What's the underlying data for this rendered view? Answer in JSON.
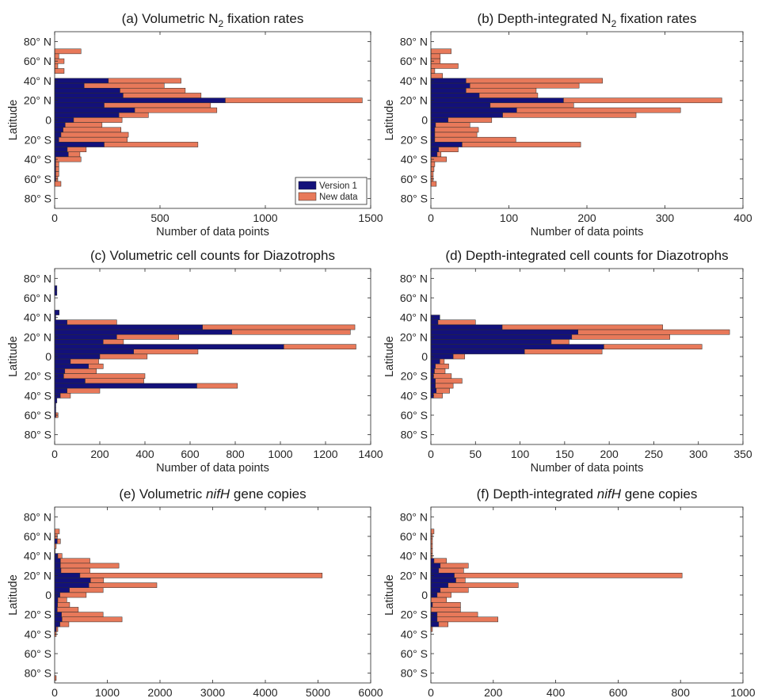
{
  "colors": {
    "version1": "#13117a",
    "new_data": "#e8795a"
  },
  "legend": {
    "version1": "Version 1",
    "new_data": "New data"
  },
  "chart_data": [
    {
      "id": "a",
      "type": "bar",
      "orientation": "horizontal",
      "stacked": true,
      "title": {
        "prefix": "(a) Volumetric N",
        "sub": "2",
        "suffix": " fixation rates"
      },
      "xlabel": "Number of data points",
      "ylabel": "Latitude",
      "xlim": [
        0,
        1500
      ],
      "xticks": [
        "0",
        "500",
        "1000",
        "1500"
      ],
      "ylim": [
        -90,
        90
      ],
      "yticks": [
        "80° N",
        "60° N",
        "40° N",
        "20° N",
        "0",
        "20° S",
        "40° S",
        "60° S",
        "80° S"
      ],
      "bin_width_deg": 5,
      "legend_position": "bottom-right",
      "latitude_bins": [
        85,
        80,
        75,
        70,
        65,
        60,
        55,
        50,
        45,
        40,
        35,
        30,
        25,
        20,
        15,
        10,
        5,
        0,
        -5,
        -10,
        -15,
        -20,
        -25,
        -30,
        -35,
        -40,
        -45,
        -50,
        -55,
        -60,
        -65,
        -70,
        -75,
        -80,
        -85
      ],
      "series": [
        {
          "name": "Version 1",
          "values": [
            0,
            0,
            0,
            0,
            0,
            0,
            0,
            0,
            0,
            255,
            140,
            310,
            325,
            810,
            235,
            380,
            305,
            90,
            50,
            40,
            30,
            20,
            235,
            60,
            65,
            5,
            5,
            5,
            5,
            5,
            0,
            0,
            0,
            0,
            0
          ]
        },
        {
          "name": "New data",
          "values": [
            0,
            0,
            0,
            125,
            20,
            45,
            15,
            45,
            0,
            345,
            380,
            310,
            370,
            650,
            505,
            390,
            140,
            230,
            175,
            275,
            320,
            325,
            445,
            90,
            55,
            120,
            15,
            15,
            15,
            10,
            30,
            0,
            0,
            0,
            0
          ]
        }
      ]
    },
    {
      "id": "b",
      "type": "bar",
      "orientation": "horizontal",
      "stacked": true,
      "title": {
        "prefix": "(b) Depth-integrated N",
        "sub": "2",
        "suffix": " fixation rates"
      },
      "xlabel": "Number of data points",
      "ylabel": "Latitude",
      "xlim": [
        0,
        400
      ],
      "xticks": [
        "0",
        "100",
        "200",
        "300",
        "400"
      ],
      "ylim": [
        -90,
        90
      ],
      "yticks": [
        "80° N",
        "60° N",
        "40° N",
        "20° N",
        "0",
        "20° S",
        "40° S",
        "60° S",
        "80° S"
      ],
      "bin_width_deg": 5,
      "latitude_bins": [
        85,
        80,
        75,
        70,
        65,
        60,
        55,
        50,
        45,
        40,
        35,
        30,
        25,
        20,
        15,
        10,
        5,
        0,
        -5,
        -10,
        -15,
        -20,
        -25,
        -30,
        -35,
        -40,
        -45,
        -50,
        -55,
        -60,
        -65,
        -70,
        -75,
        -80,
        -85
      ],
      "series": [
        {
          "name": "Version 1",
          "values": [
            0,
            0,
            0,
            0,
            0,
            0,
            0,
            0,
            0,
            45,
            50,
            45,
            62,
            170,
            76,
            110,
            92,
            22,
            6,
            5,
            5,
            5,
            40,
            10,
            8,
            0,
            0,
            0,
            0,
            0,
            0,
            0,
            0,
            0,
            0
          ]
        },
        {
          "name": "New data",
          "values": [
            0,
            0,
            0,
            26,
            12,
            12,
            35,
            5,
            15,
            175,
            140,
            90,
            75,
            203,
            107,
            210,
            171,
            56,
            44,
            56,
            54,
            104,
            152,
            25,
            5,
            20,
            5,
            4,
            3,
            3,
            7,
            0,
            0,
            0,
            0
          ]
        }
      ]
    },
    {
      "id": "c",
      "type": "bar",
      "orientation": "horizontal",
      "stacked": true,
      "title": {
        "prefix": "(c) Volumetric cell counts for Diazotrophs",
        "sub": "",
        "suffix": ""
      },
      "xlabel": "Number of data points",
      "ylabel": "Latitude",
      "xlim": [
        0,
        1400
      ],
      "xticks": [
        "0",
        "200",
        "400",
        "600",
        "800",
        "1000",
        "1200",
        "1400"
      ],
      "ylim": [
        -90,
        90
      ],
      "yticks": [
        "80° N",
        "60° N",
        "40° N",
        "20° N",
        "0",
        "20° S",
        "40° S",
        "60° S",
        "80° S"
      ],
      "bin_width_deg": 5,
      "latitude_bins": [
        85,
        80,
        75,
        70,
        65,
        60,
        55,
        50,
        45,
        40,
        35,
        30,
        25,
        20,
        15,
        10,
        5,
        0,
        -5,
        -10,
        -15,
        -20,
        -25,
        -30,
        -35,
        -40,
        -45,
        -50,
        -55,
        -60,
        -65,
        -70,
        -75,
        -80,
        -85
      ],
      "series": [
        {
          "name": "Version 1",
          "values": [
            0,
            0,
            0,
            10,
            10,
            0,
            0,
            0,
            20,
            5,
            55,
            655,
            785,
            275,
            215,
            1015,
            350,
            200,
            70,
            150,
            45,
            40,
            135,
            630,
            55,
            25,
            10,
            5,
            5,
            5,
            0,
            0,
            0,
            0,
            0
          ]
        },
        {
          "name": "New data",
          "values": [
            0,
            0,
            0,
            0,
            0,
            0,
            0,
            0,
            0,
            0,
            220,
            675,
            525,
            275,
            90,
            320,
            285,
            210,
            125,
            65,
            140,
            360,
            260,
            180,
            145,
            45,
            0,
            0,
            0,
            10,
            0,
            0,
            0,
            0,
            0
          ]
        }
      ]
    },
    {
      "id": "d",
      "type": "bar",
      "orientation": "horizontal",
      "stacked": true,
      "title": {
        "prefix": "(d) Depth-integrated cell counts for Diazotrophs",
        "sub": "",
        "suffix": ""
      },
      "xlabel": "Number of data points",
      "ylabel": "Latitude",
      "xlim": [
        0,
        350
      ],
      "xticks": [
        "0",
        "50",
        "100",
        "150",
        "200",
        "250",
        "300",
        "350"
      ],
      "ylim": [
        -90,
        90
      ],
      "yticks": [
        "80° N",
        "60° N",
        "40° N",
        "20° N",
        "0",
        "20° S",
        "40° S",
        "60° S",
        "80° S"
      ],
      "bin_width_deg": 5,
      "latitude_bins": [
        85,
        80,
        75,
        70,
        65,
        60,
        55,
        50,
        45,
        40,
        35,
        30,
        25,
        20,
        15,
        10,
        5,
        0,
        -5,
        -10,
        -15,
        -20,
        -25,
        -30,
        -35,
        -40,
        -45,
        -50,
        -55,
        -60,
        -65,
        -70,
        -75,
        -80,
        -85
      ],
      "series": [
        {
          "name": "Version 1",
          "values": [
            0,
            0,
            0,
            0,
            0,
            0,
            0,
            0,
            0,
            10,
            8,
            80,
            165,
            158,
            135,
            194,
            105,
            25,
            10,
            5,
            4,
            3,
            5,
            5,
            6,
            3,
            0,
            0,
            0,
            0,
            0,
            0,
            0,
            0,
            0
          ]
        },
        {
          "name": "New data",
          "values": [
            0,
            0,
            0,
            0,
            0,
            0,
            0,
            0,
            0,
            0,
            42,
            180,
            170,
            110,
            20,
            110,
            87,
            13,
            5,
            15,
            12,
            20,
            30,
            20,
            15,
            10,
            0,
            0,
            0,
            0,
            0,
            0,
            0,
            0,
            0
          ]
        }
      ]
    },
    {
      "id": "e",
      "type": "bar",
      "orientation": "horizontal",
      "stacked": true,
      "title": {
        "prefix": "(e) Volumetric ",
        "italic": "nifH",
        "suffix": " gene copies"
      },
      "xlabel": "Number of data points",
      "ylabel": "Latitude",
      "xlim": [
        0,
        6000
      ],
      "xticks": [
        "0",
        "1000",
        "2000",
        "3000",
        "4000",
        "5000",
        "6000"
      ],
      "ylim": [
        -90,
        90
      ],
      "yticks": [
        "80° N",
        "60° N",
        "40° N",
        "20° N",
        "0",
        "20° S",
        "40° S",
        "60° S",
        "80° S"
      ],
      "bin_width_deg": 5,
      "latitude_bins": [
        85,
        80,
        75,
        70,
        65,
        60,
        55,
        50,
        45,
        40,
        35,
        30,
        25,
        20,
        15,
        10,
        5,
        0,
        -5,
        -10,
        -15,
        -20,
        -25,
        -30,
        -35,
        -40,
        -45,
        -50,
        -55,
        -60,
        -65,
        -70,
        -75,
        -80,
        -85
      ],
      "series": [
        {
          "name": "Version 1",
          "values": [
            0,
            0,
            0,
            0,
            0,
            0,
            50,
            0,
            0,
            60,
            110,
            110,
            120,
            480,
            680,
            650,
            280,
            100,
            60,
            55,
            50,
            130,
            140,
            100,
            30,
            0,
            0,
            0,
            0,
            0,
            0,
            0,
            0,
            0,
            0
          ]
        },
        {
          "name": "New data",
          "values": [
            0,
            0,
            0,
            0,
            90,
            50,
            60,
            30,
            10,
            80,
            560,
            1110,
            550,
            4600,
            250,
            1290,
            640,
            500,
            170,
            230,
            400,
            790,
            1140,
            170,
            30,
            30,
            0,
            0,
            0,
            0,
            0,
            0,
            0,
            0,
            30
          ]
        }
      ]
    },
    {
      "id": "f",
      "type": "bar",
      "orientation": "horizontal",
      "stacked": true,
      "title": {
        "prefix": "(f) Depth-integrated ",
        "italic": "nifH",
        "suffix": " gene copies"
      },
      "xlabel": "Number of data points",
      "ylabel": "Latitude",
      "xlim": [
        0,
        1000
      ],
      "xticks": [
        "0",
        "200",
        "400",
        "600",
        "800",
        "1000"
      ],
      "ylim": [
        -90,
        90
      ],
      "yticks": [
        "80° N",
        "60° N",
        "40° N",
        "20° N",
        "0",
        "20° S",
        "40° S",
        "60° S",
        "80° S"
      ],
      "bin_width_deg": 5,
      "latitude_bins": [
        85,
        80,
        75,
        70,
        65,
        60,
        55,
        50,
        45,
        40,
        35,
        30,
        25,
        20,
        15,
        10,
        5,
        0,
        -5,
        -10,
        -15,
        -20,
        -25,
        -30,
        -35,
        -40,
        -45,
        -50,
        -55,
        -60,
        -65,
        -70,
        -75,
        -80,
        -85
      ],
      "series": [
        {
          "name": "Version 1",
          "values": [
            0,
            0,
            0,
            0,
            0,
            0,
            0,
            0,
            0,
            0,
            10,
            30,
            25,
            75,
            80,
            55,
            30,
            20,
            0,
            5,
            0,
            20,
            20,
            25,
            0,
            0,
            0,
            0,
            0,
            0,
            0,
            0,
            0,
            0,
            0
          ]
        },
        {
          "name": "New data",
          "values": [
            0,
            0,
            0,
            0,
            10,
            5,
            5,
            5,
            5,
            5,
            40,
            90,
            80,
            730,
            30,
            225,
            90,
            45,
            50,
            90,
            95,
            130,
            195,
            30,
            5,
            0,
            0,
            0,
            0,
            0,
            0,
            0,
            0,
            0,
            0
          ]
        }
      ]
    }
  ]
}
